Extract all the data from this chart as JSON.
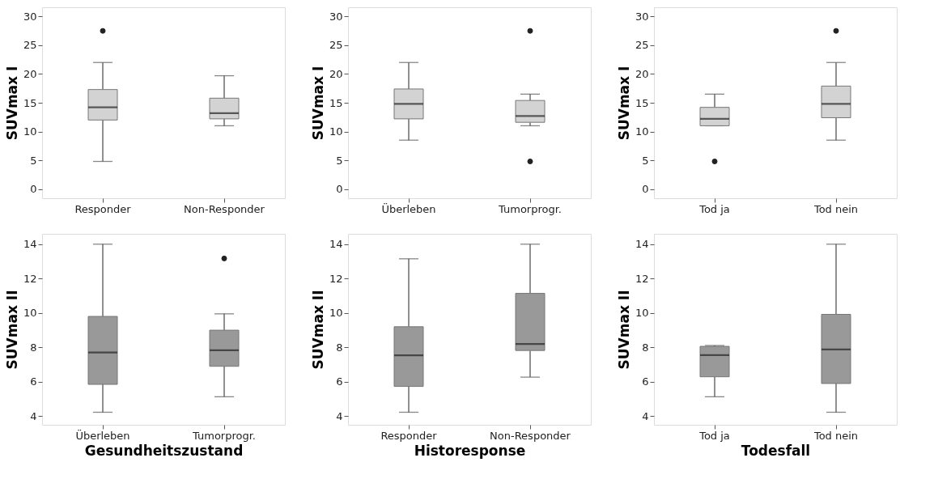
{
  "chart_data": [
    {
      "type": "box",
      "ylabel": "SUVmax I",
      "categories": [
        "Responder",
        "Non-Responder"
      ],
      "ylim": [
        -1.6,
        31.6
      ],
      "yticks": [
        0,
        5,
        10,
        15,
        20,
        25,
        30
      ],
      "grid": false,
      "series": [
        {
          "color": "#d3d3d3",
          "boxes": [
            {
              "low": 4.8,
              "q1": 12.0,
              "median": 14.2,
              "q3": 17.3,
              "high": 22.0,
              "outliers": [
                27.5
              ]
            },
            {
              "low": 11.0,
              "q1": 12.2,
              "median": 13.2,
              "q3": 15.8,
              "high": 19.7
            }
          ]
        }
      ]
    },
    {
      "type": "box",
      "ylabel": "SUVmax I",
      "categories": [
        "Überleben",
        "Tumorprogr."
      ],
      "ylim": [
        -1.6,
        31.6
      ],
      "yticks": [
        0,
        5,
        10,
        15,
        20,
        25,
        30
      ],
      "grid": false,
      "series": [
        {
          "color": "#d3d3d3",
          "boxes": [
            {
              "low": 8.5,
              "q1": 12.2,
              "median": 14.8,
              "q3": 17.4,
              "high": 22.0
            },
            {
              "low": 11.0,
              "q1": 11.6,
              "median": 12.7,
              "q3": 15.4,
              "high": 16.5,
              "outliers": [
                4.8,
                27.5
              ]
            }
          ]
        }
      ]
    },
    {
      "type": "box",
      "ylabel": "SUVmax I",
      "categories": [
        "Tod ja",
        "Tod nein"
      ],
      "ylim": [
        -1.6,
        31.6
      ],
      "yticks": [
        0,
        5,
        10,
        15,
        20,
        25,
        30
      ],
      "grid": false,
      "series": [
        {
          "color": "#d3d3d3",
          "boxes": [
            {
              "low": 11.0,
              "q1": 11.0,
              "median": 12.2,
              "q3": 14.2,
              "high": 16.5,
              "outliers": [
                4.8
              ]
            },
            {
              "low": 8.5,
              "q1": 12.4,
              "median": 14.8,
              "q3": 17.9,
              "high": 22.0,
              "outliers": [
                27.5
              ]
            }
          ]
        }
      ]
    },
    {
      "type": "box",
      "ylabel": "SUVmax II",
      "xlabel": "Gesundheitszustand",
      "categories": [
        "Überleben",
        "Tumorprogr."
      ],
      "ylim": [
        3.5,
        14.6
      ],
      "yticks": [
        4,
        6,
        8,
        10,
        12,
        14
      ],
      "grid": false,
      "series": [
        {
          "color": "#999999",
          "boxes": [
            {
              "low": 4.23,
              "q1": 5.85,
              "median": 7.7,
              "q3": 9.8,
              "high": 14.0
            },
            {
              "low": 5.13,
              "q1": 6.9,
              "median": 7.83,
              "q3": 9.0,
              "high": 9.95,
              "outliers": [
                13.17
              ]
            }
          ]
        }
      ]
    },
    {
      "type": "box",
      "ylabel": "SUVmax II",
      "xlabel": "Historesponse",
      "categories": [
        "Responder",
        "Non-Responder"
      ],
      "ylim": [
        3.5,
        14.6
      ],
      "yticks": [
        4,
        6,
        8,
        10,
        12,
        14
      ],
      "grid": false,
      "series": [
        {
          "color": "#999999",
          "boxes": [
            {
              "low": 4.23,
              "q1": 5.73,
              "median": 7.54,
              "q3": 9.2,
              "high": 13.15
            },
            {
              "low": 6.27,
              "q1": 7.82,
              "median": 8.2,
              "q3": 11.14,
              "high": 14.0
            }
          ]
        }
      ]
    },
    {
      "type": "box",
      "ylabel": "SUVmax II",
      "xlabel": "Todesfall",
      "categories": [
        "Tod ja",
        "Tod nein"
      ],
      "ylim": [
        3.5,
        14.6
      ],
      "yticks": [
        4,
        6,
        8,
        10,
        12,
        14
      ],
      "grid": false,
      "series": [
        {
          "color": "#999999",
          "boxes": [
            {
              "low": 5.13,
              "q1": 6.29,
              "median": 7.55,
              "q3": 8.06,
              "high": 8.11
            },
            {
              "low": 4.23,
              "q1": 5.9,
              "median": 7.88,
              "q3": 9.92,
              "high": 14.0
            }
          ]
        }
      ]
    }
  ]
}
